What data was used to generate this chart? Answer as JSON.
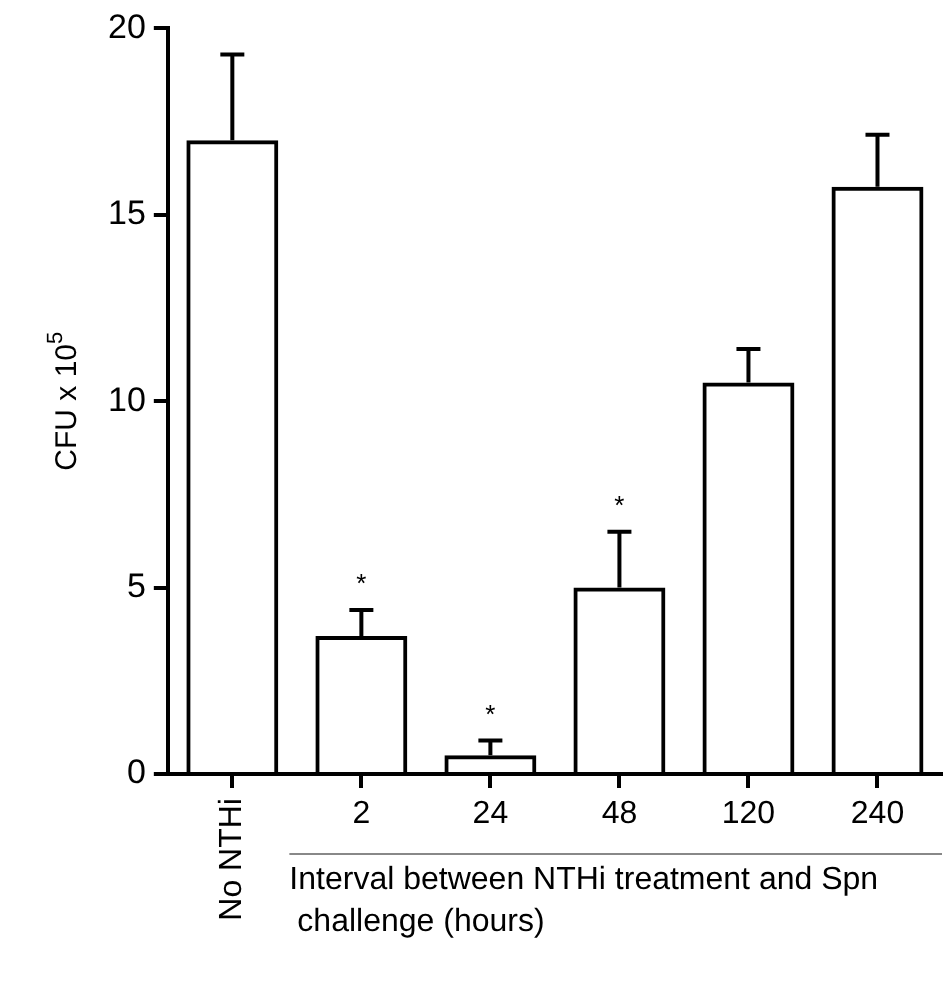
{
  "chart_data": {
    "type": "bar",
    "categories": [
      "No NTHi",
      "2",
      "24",
      "48",
      "120",
      "240"
    ],
    "values": [
      17.0,
      3.7,
      0.5,
      5.0,
      10.5,
      15.75
    ],
    "errors": [
      [
        17.0,
        19.3
      ],
      [
        3.7,
        4.4
      ],
      [
        0.5,
        0.9
      ],
      [
        5.0,
        6.5
      ],
      [
        10.5,
        11.4
      ],
      [
        15.75,
        17.15
      ]
    ],
    "color": "#000000",
    "ylabel": "CFU x 10$^{5}$",
    "xlabel": "Interval between NTHi treatment and Spn challenge (hours)",
    "ylim": [
      0,
      20
    ],
    "yticks": [
      0,
      5,
      10,
      15,
      20
    ],
    "annotations": [
      {
        "text": "*",
        "x": "2",
        "y": 4.4
      },
      {
        "text": "*",
        "x": "24",
        "y": 0.9
      },
      {
        "text": "*",
        "x": "48",
        "y": 6.5
      }
    ],
    "grid": false,
    "legend": false
  }
}
